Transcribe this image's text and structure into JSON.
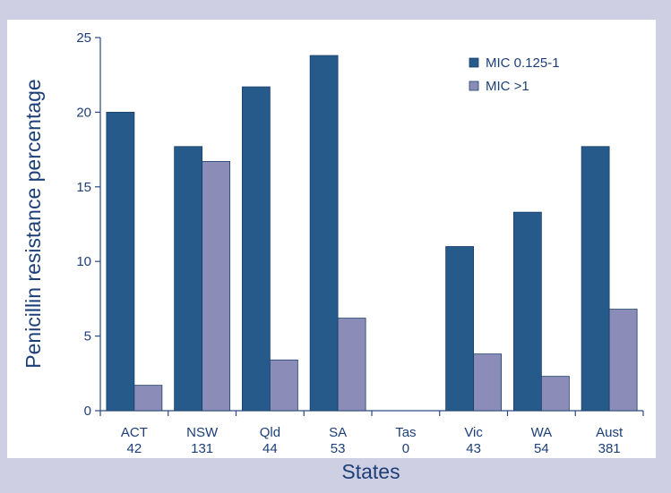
{
  "chart_data": {
    "type": "bar",
    "xlabel": "States",
    "ylabel": "Penicillin resistance percentage",
    "ylim": [
      0,
      25
    ],
    "yticks": [
      0,
      5,
      10,
      15,
      20,
      25
    ],
    "categories": [
      {
        "name": "ACT",
        "count": "42"
      },
      {
        "name": "NSW",
        "count": "131"
      },
      {
        "name": "Qld",
        "count": "44"
      },
      {
        "name": "SA",
        "count": "53"
      },
      {
        "name": "Tas",
        "count": "0"
      },
      {
        "name": "Vic",
        "count": "43"
      },
      {
        "name": "WA",
        "count": "54"
      },
      {
        "name": "Aust",
        "count": "381"
      }
    ],
    "series": [
      {
        "name": "MIC 0.125-1",
        "color": "#255a8a",
        "values": [
          20.0,
          17.7,
          21.7,
          23.8,
          0,
          11.0,
          13.3,
          17.7
        ]
      },
      {
        "name": "MIC >1",
        "color": "#8b8db8",
        "values": [
          1.7,
          16.7,
          3.4,
          6.2,
          0,
          3.8,
          2.3,
          6.8
        ]
      }
    ],
    "grid": false,
    "legend": "top-right",
    "background_color": "#cfcfe3",
    "plot_background_color": "#ffffff",
    "text_color": "#1c3f78"
  }
}
